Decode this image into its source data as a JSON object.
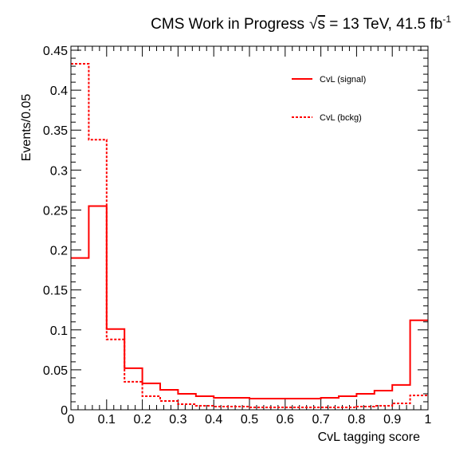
{
  "chart_data": {
    "type": "histogram",
    "title": {
      "main": "CMS Work in Progress",
      "sqrt_symbol": "√",
      "energy_var": "s",
      "energy_rest": " = 13 TeV, 41.5 fb",
      "lumi_sup": "-1"
    },
    "xlabel": "CvL tagging score",
    "ylabel": "Events/0.05",
    "xlim": [
      0,
      1
    ],
    "ylim": [
      0,
      0.455
    ],
    "x_ticks": [
      0,
      0.1,
      0.2,
      0.3,
      0.4,
      0.5,
      0.6,
      0.7,
      0.8,
      0.9,
      1
    ],
    "x_tick_labels": [
      "0",
      "0.1",
      "0.2",
      "0.3",
      "0.4",
      "0.5",
      "0.6",
      "0.7",
      "0.8",
      "0.9",
      "1"
    ],
    "y_ticks": [
      0,
      0.05,
      0.1,
      0.15,
      0.2,
      0.25,
      0.3,
      0.35,
      0.4,
      0.45
    ],
    "y_tick_labels": [
      "0",
      "0.05",
      "0.1",
      "0.15",
      "0.2",
      "0.25",
      "0.3",
      "0.35",
      "0.4",
      "0.45"
    ],
    "bin_edges": [
      0,
      0.05,
      0.1,
      0.15,
      0.2,
      0.25,
      0.3,
      0.35,
      0.4,
      0.45,
      0.5,
      0.55,
      0.6,
      0.65,
      0.7,
      0.75,
      0.8,
      0.85,
      0.9,
      0.95,
      1.0
    ],
    "series": [
      {
        "name": "CvL (signal)",
        "style": "solid",
        "color": "#ff0000",
        "values": [
          0.19,
          0.255,
          0.101,
          0.052,
          0.033,
          0.025,
          0.02,
          0.017,
          0.015,
          0.015,
          0.014,
          0.014,
          0.014,
          0.014,
          0.015,
          0.017,
          0.02,
          0.024,
          0.031,
          0.112
        ]
      },
      {
        "name": "CvL (bckg)",
        "style": "dashed",
        "color": "#ff0000",
        "values": [
          0.433,
          0.338,
          0.088,
          0.035,
          0.017,
          0.011,
          0.007,
          0.005,
          0.004,
          0.004,
          0.003,
          0.003,
          0.003,
          0.003,
          0.003,
          0.003,
          0.004,
          0.005,
          0.008,
          0.018
        ]
      }
    ],
    "legend": {
      "placement": "top-right"
    },
    "grid": false
  }
}
